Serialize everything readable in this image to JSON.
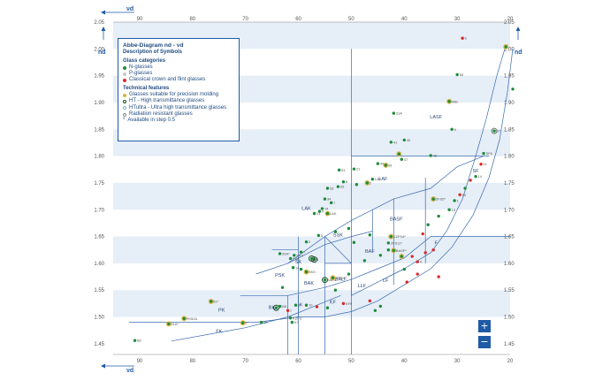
{
  "axis": {
    "x_name": "νd",
    "y_name": "nd",
    "x_ticks": [
      "90",
      "80",
      "70",
      "60",
      "50",
      "40",
      "30",
      "20"
    ],
    "y_ticks": [
      "2.05",
      "2.00",
      "1.95",
      "1.90",
      "1.85",
      "1.80",
      "1.75",
      "1.70",
      "1.65",
      "1.60",
      "1.55",
      "1.50",
      "1.45"
    ]
  },
  "legend": {
    "title": "Abbe-Diagram nd - νd",
    "subtitle": "Description of Symbols",
    "categories_heading": "Glass categories",
    "categories": [
      {
        "label": "N-glasses",
        "color": "#1e8c3a"
      },
      {
        "label": "P-glasses",
        "color": "#c8c8c8"
      },
      {
        "label": "Classical crown and flint glasses",
        "color": "#d92a2a"
      }
    ],
    "features_heading": "Technical features",
    "features": [
      {
        "label": "Glasses suitable for precision molding",
        "marker": "gold"
      },
      {
        "label": "HT - High transmittance glasses",
        "marker": "ring-dark"
      },
      {
        "label": "HTultra - Ultra high transmittance glasses",
        "marker": "ring-light"
      },
      {
        "label": "Radiation resistant glasses",
        "marker": "ring-grey"
      },
      {
        "label": "Available in step 0.5",
        "marker": "asterisk"
      }
    ]
  },
  "zoom": {
    "in_label": "+",
    "out_label": "−"
  },
  "regions": [
    {
      "label": "LASF",
      "vd": 34,
      "nd": 1.87
    },
    {
      "label": "LAF",
      "vd": 44,
      "nd": 1.755
    },
    {
      "label": "LAK",
      "vd": 58.5,
      "nd": 1.7
    },
    {
      "label": "SSK",
      "vd": 52.5,
      "nd": 1.65
    },
    {
      "label": "BAF",
      "vd": 46.5,
      "nd": 1.62
    },
    {
      "label": "BASF",
      "vd": 41.5,
      "nd": 1.68
    },
    {
      "label": "PSK",
      "vd": 63.5,
      "nd": 1.575
    },
    {
      "label": "BALF",
      "vd": 52,
      "nd": 1.568
    },
    {
      "label": "BAK",
      "vd": 58,
      "nd": 1.56
    },
    {
      "label": "SK",
      "vd": 60,
      "nd": 1.6
    },
    {
      "label": "LLF",
      "vd": 48,
      "nd": 1.555
    },
    {
      "label": "LF",
      "vd": 43.5,
      "nd": 1.565
    },
    {
      "label": "F",
      "vd": 34,
      "nd": 1.635
    },
    {
      "label": "SF",
      "vd": 26.5,
      "nd": 1.77
    },
    {
      "label": "K",
      "vd": 59.5,
      "nd": 1.52
    },
    {
      "label": "KF",
      "vd": 53.5,
      "nd": 1.525
    },
    {
      "label": "BK",
      "vd": 65,
      "nd": 1.515
    },
    {
      "label": "PK",
      "vd": 74.5,
      "nd": 1.51
    },
    {
      "label": "FK",
      "vd": 75,
      "nd": 1.47
    }
  ],
  "chart_data": {
    "type": "scatter",
    "title": "Abbe-Diagram nd - νd",
    "xlabel": "νd",
    "ylabel": "nd",
    "xlim": [
      95,
      20
    ],
    "ylim": [
      1.43,
      2.05
    ],
    "x_reversed": true,
    "grid": "horizontal bands",
    "legend_position": "top-left",
    "points": [
      {
        "vd": 90.9,
        "nd": 1.456,
        "cat": "N",
        "lbl": "68"
      },
      {
        "vd": 81.6,
        "nd": 1.497,
        "cat": "N",
        "feat": "gold",
        "lbl": "PK52A"
      },
      {
        "vd": 84.5,
        "nd": 1.487,
        "cat": "N",
        "feat": "gold",
        "lbl": "51A*"
      },
      {
        "vd": 76.5,
        "nd": 1.529,
        "cat": "N",
        "feat": "gold",
        "lbl": "51*"
      },
      {
        "vd": 70.5,
        "nd": 1.489,
        "cat": "N",
        "feat": "gold",
        "lbl": "5*"
      },
      {
        "vd": 67,
        "nd": 1.49,
        "cat": "N",
        "lbl": "55"
      },
      {
        "vd": 64.2,
        "nd": 1.517,
        "cat": "N",
        "feat": "ht",
        "lbl": "7*"
      },
      {
        "vd": 63.5,
        "nd": 1.52,
        "cat": "N",
        "lbl": "BK"
      },
      {
        "vd": 62,
        "nd": 1.512,
        "cat": "C",
        "lbl": "7"
      },
      {
        "vd": 61.5,
        "nd": 1.498,
        "cat": "N",
        "lbl": "KZFS"
      },
      {
        "vd": 60.5,
        "nd": 1.522,
        "cat": "N",
        "lbl": "5"
      },
      {
        "vd": 61.2,
        "nd": 1.49,
        "cat": "N",
        "lbl": "K7"
      },
      {
        "vd": 58.5,
        "nd": 1.522,
        "cat": "N",
        "lbl": "10"
      },
      {
        "vd": 56.5,
        "nd": 1.519,
        "cat": "C",
        "lbl": ""
      },
      {
        "vd": 54.5,
        "nd": 1.517,
        "cat": "N",
        "lbl": ""
      },
      {
        "vd": 51.5,
        "nd": 1.525,
        "cat": "C",
        "lbl": "KF9"
      },
      {
        "vd": 46.5,
        "nd": 1.53,
        "cat": "C",
        "lbl": ""
      },
      {
        "vd": 45.5,
        "nd": 1.512,
        "cat": "N",
        "lbl": ""
      },
      {
        "vd": 44.5,
        "nd": 1.52,
        "cat": "N",
        "lbl": ""
      },
      {
        "vd": 53,
        "nd": 1.55,
        "cat": "N",
        "lbl": ""
      },
      {
        "vd": 55,
        "nd": 1.569,
        "cat": "N",
        "feat": "ht",
        "lbl": "BAK1"
      },
      {
        "vd": 53.5,
        "nd": 1.573,
        "cat": "N",
        "feat": "gold",
        "lbl": "ZFS2*"
      },
      {
        "vd": 50.5,
        "nd": 1.58,
        "cat": "N",
        "lbl": ""
      },
      {
        "vd": 58.5,
        "nd": 1.584,
        "cat": "N",
        "feat": "gold",
        "lbl": "SK5"
      },
      {
        "vd": 59.5,
        "nd": 1.589,
        "cat": "N",
        "lbl": ""
      },
      {
        "vd": 61,
        "nd": 1.592,
        "cat": "N",
        "lbl": "14"
      },
      {
        "vd": 63,
        "nd": 1.555,
        "cat": "N",
        "lbl": ""
      },
      {
        "vd": 61.5,
        "nd": 1.609,
        "cat": "N",
        "lbl": "PSK"
      },
      {
        "vd": 60.8,
        "nd": 1.615,
        "cat": "N",
        "lbl": "SK4"
      },
      {
        "vd": 57,
        "nd": 1.607,
        "cat": "N",
        "feat": "ht",
        "lbl": "4"
      },
      {
        "vd": 57.5,
        "nd": 1.609,
        "cat": "N",
        "feat": "ht",
        "lbl": "16"
      },
      {
        "vd": 63.5,
        "nd": 1.618,
        "cat": "N",
        "lbl": "53A*"
      },
      {
        "vd": 59.5,
        "nd": 1.621,
        "cat": "N",
        "lbl": "7"
      },
      {
        "vd": 58.5,
        "nd": 1.64,
        "cat": "N",
        "lbl": "2"
      },
      {
        "vd": 56.2,
        "nd": 1.652,
        "cat": "N",
        "lbl": "5"
      },
      {
        "vd": 53,
        "nd": 1.659,
        "cat": "N",
        "lbl": ""
      },
      {
        "vd": 50.5,
        "nd": 1.665,
        "cat": "N",
        "lbl": ""
      },
      {
        "vd": 49.5,
        "nd": 1.639,
        "cat": "N",
        "lbl": ""
      },
      {
        "vd": 47.5,
        "nd": 1.605,
        "cat": "N",
        "lbl": ""
      },
      {
        "vd": 46.5,
        "nd": 1.653,
        "cat": "N",
        "lbl": ""
      },
      {
        "vd": 44.5,
        "nd": 1.615,
        "cat": "N",
        "lbl": ""
      },
      {
        "vd": 43,
        "nd": 1.625,
        "cat": "N",
        "lbl": ""
      },
      {
        "vd": 42,
        "nd": 1.624,
        "cat": "N",
        "feat": "gold",
        "lbl": "BASF*"
      },
      {
        "vd": 40.5,
        "nd": 1.613,
        "cat": "N",
        "feat": "gold",
        "lbl": ""
      },
      {
        "vd": 38.5,
        "nd": 1.613,
        "cat": "C",
        "lbl": ""
      },
      {
        "vd": 37.5,
        "nd": 1.603,
        "cat": "C",
        "lbl": "4"
      },
      {
        "vd": 36,
        "nd": 1.62,
        "cat": "C",
        "lbl": ""
      },
      {
        "vd": 34.5,
        "nd": 1.625,
        "cat": "C",
        "lbl": ""
      },
      {
        "vd": 42.5,
        "nd": 1.65,
        "cat": "N",
        "feat": "gold",
        "lbl": "KZFS4*"
      },
      {
        "vd": 43,
        "nd": 1.638,
        "cat": "N",
        "lbl": "ZFS11*"
      },
      {
        "vd": 40,
        "nd": 1.589,
        "cat": "N",
        "lbl": ""
      },
      {
        "vd": 39.5,
        "nd": 1.565,
        "cat": "C",
        "lbl": ""
      },
      {
        "vd": 37.5,
        "nd": 1.58,
        "cat": "C",
        "lbl": ""
      },
      {
        "vd": 33.5,
        "nd": 1.575,
        "cat": "C",
        "lbl": ""
      },
      {
        "vd": 57,
        "nd": 1.693,
        "cat": "N",
        "lbl": "21"
      },
      {
        "vd": 56,
        "nd": 1.697,
        "cat": "N",
        "lbl": "4"
      },
      {
        "vd": 54.5,
        "nd": 1.693,
        "cat": "N",
        "feat": "gold",
        "lbl": "LAK"
      },
      {
        "vd": 55.5,
        "nd": 1.702,
        "cat": "N",
        "lbl": "14"
      },
      {
        "vd": 53.8,
        "nd": 1.713,
        "cat": "N",
        "lbl": "7"
      },
      {
        "vd": 55,
        "nd": 1.72,
        "cat": "N",
        "lbl": "34"
      },
      {
        "vd": 54.5,
        "nd": 1.74,
        "cat": "N",
        "lbl": "33"
      },
      {
        "vd": 52.5,
        "nd": 1.743,
        "cat": "N",
        "lbl": "35"
      },
      {
        "vd": 51.5,
        "nd": 1.752,
        "cat": "N",
        "lbl": "8"
      },
      {
        "vd": 49,
        "nd": 1.747,
        "cat": "N",
        "lbl": ""
      },
      {
        "vd": 47,
        "nd": 1.75,
        "cat": "N",
        "feat": "gold",
        "lbl": "2"
      },
      {
        "vd": 46,
        "nd": 1.757,
        "cat": "N",
        "lbl": "LAF"
      },
      {
        "vd": 52.3,
        "nd": 1.774,
        "cat": "N",
        "lbl": "51"
      },
      {
        "vd": 49.5,
        "nd": 1.776,
        "cat": "N",
        "lbl": "21"
      },
      {
        "vd": 45,
        "nd": 1.786,
        "cat": "N",
        "lbl": "44"
      },
      {
        "vd": 43.5,
        "nd": 1.783,
        "cat": "N",
        "feat": "gold",
        "lbl": "43"
      },
      {
        "vd": 40.5,
        "nd": 1.794,
        "cat": "N",
        "lbl": "47"
      },
      {
        "vd": 41,
        "nd": 1.804,
        "cat": "N",
        "feat": "gold",
        "lbl": ""
      },
      {
        "vd": 35,
        "nd": 1.801,
        "cat": "N",
        "lbl": "46"
      },
      {
        "vd": 42.5,
        "nd": 1.826,
        "cat": "N",
        "lbl": "41"
      },
      {
        "vd": 40,
        "nd": 1.83,
        "cat": "N",
        "lbl": "40"
      },
      {
        "vd": 42,
        "nd": 1.88,
        "cat": "N",
        "lbl": "31A"
      },
      {
        "vd": 31.5,
        "nd": 1.902,
        "cat": "N",
        "feat": "gold",
        "lbl": "46B"
      },
      {
        "vd": 31,
        "nd": 1.85,
        "cat": "N",
        "lbl": "9"
      },
      {
        "vd": 30,
        "nd": 1.952,
        "cat": "N",
        "lbl": "55"
      },
      {
        "vd": 29,
        "nd": 2.02,
        "cat": "C",
        "lbl": "6"
      },
      {
        "vd": 20.8,
        "nd": 2.004,
        "cat": "N",
        "feat": "gold",
        "lbl": ""
      },
      {
        "vd": 19.5,
        "nd": 1.925,
        "cat": "N",
        "lbl": ""
      },
      {
        "vd": 23,
        "nd": 1.847,
        "cat": "N",
        "feat": "radres",
        "lbl": "57"
      },
      {
        "vd": 25,
        "nd": 1.805,
        "cat": "N",
        "lbl": "SF6"
      },
      {
        "vd": 25.5,
        "nd": 1.785,
        "cat": "C",
        "lbl": "11"
      },
      {
        "vd": 26.5,
        "nd": 1.762,
        "cat": "N",
        "lbl": "14"
      },
      {
        "vd": 27.5,
        "nd": 1.755,
        "cat": "C",
        "lbl": ""
      },
      {
        "vd": 28.5,
        "nd": 1.74,
        "cat": "N",
        "lbl": ""
      },
      {
        "vd": 29.5,
        "nd": 1.728,
        "cat": "C",
        "lbl": "10"
      },
      {
        "vd": 30.5,
        "nd": 1.717,
        "cat": "N",
        "lbl": "1"
      },
      {
        "vd": 31.5,
        "nd": 1.7,
        "cat": "N",
        "lbl": "15"
      },
      {
        "vd": 34.5,
        "nd": 1.72,
        "cat": "N",
        "feat": "gold",
        "lbl": "ZFS5*"
      },
      {
        "vd": 33.5,
        "nd": 1.688,
        "cat": "N",
        "lbl": ""
      },
      {
        "vd": 35.5,
        "nd": 1.672,
        "cat": "N",
        "lbl": ""
      },
      {
        "vd": 36.5,
        "nd": 1.655,
        "cat": "C",
        "lbl": ""
      }
    ]
  }
}
